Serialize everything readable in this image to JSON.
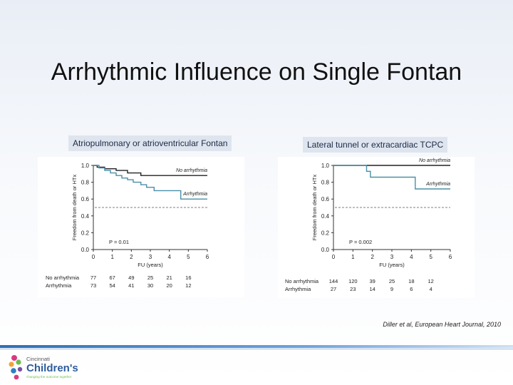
{
  "slide": {
    "title": "Arrhythmic Influence on Single Fontan",
    "citation": "Diller et al, European Heart Journal, 2010"
  },
  "logo": {
    "line1": "Cincinnati",
    "line2": "Children's",
    "tagline": "changing the outcome together",
    "colors": [
      "#d93a7f",
      "#6cbf4a",
      "#2d7fc1",
      "#f2a33a",
      "#7a4fa0"
    ]
  },
  "colors": {
    "no_arrhythmia": "#222222",
    "arrhythmia": "#4a8fa8",
    "reference": "#555555"
  },
  "chart_data": [
    {
      "type": "line",
      "step": true,
      "subtitle": "Atriopulmonary or atrioventricular Fontan",
      "xlabel": "FU (years)",
      "ylabel": "Freedom from death or HTx",
      "xlim": [
        0,
        6
      ],
      "ylim": [
        0.0,
        1.0
      ],
      "xticks": [
        "0",
        "1",
        "2",
        "3",
        "4",
        "5",
        "6"
      ],
      "yticks": [
        "0.0",
        "0.2",
        "0.4",
        "0.6",
        "0.8",
        "1.0"
      ],
      "reference_line": 0.5,
      "annotation": "P = 0.01",
      "series": [
        {
          "name": "No arrhythmia",
          "points": [
            [
              0,
              1.0
            ],
            [
              0.2,
              1.0
            ],
            [
              0.2,
              0.98
            ],
            [
              0.6,
              0.98
            ],
            [
              0.6,
              0.96
            ],
            [
              1.2,
              0.96
            ],
            [
              1.2,
              0.94
            ],
            [
              1.8,
              0.94
            ],
            [
              1.8,
              0.91
            ],
            [
              2.5,
              0.91
            ],
            [
              2.5,
              0.88
            ],
            [
              6,
              0.88
            ]
          ],
          "at_risk": [
            "77",
            "67",
            "49",
            "25",
            "21",
            "16"
          ]
        },
        {
          "name": "Arrhythmia",
          "points": [
            [
              0,
              1.0
            ],
            [
              0.3,
              1.0
            ],
            [
              0.3,
              0.97
            ],
            [
              0.6,
              0.97
            ],
            [
              0.6,
              0.94
            ],
            [
              0.9,
              0.94
            ],
            [
              0.9,
              0.91
            ],
            [
              1.2,
              0.91
            ],
            [
              1.2,
              0.88
            ],
            [
              1.5,
              0.88
            ],
            [
              1.5,
              0.85
            ],
            [
              1.8,
              0.85
            ],
            [
              1.8,
              0.83
            ],
            [
              2.1,
              0.83
            ],
            [
              2.1,
              0.8
            ],
            [
              2.5,
              0.8
            ],
            [
              2.5,
              0.77
            ],
            [
              2.8,
              0.77
            ],
            [
              2.8,
              0.74
            ],
            [
              3.2,
              0.74
            ],
            [
              3.2,
              0.7
            ],
            [
              4.6,
              0.7
            ],
            [
              4.6,
              0.6
            ],
            [
              6,
              0.6
            ]
          ],
          "at_risk": [
            "73",
            "54",
            "41",
            "30",
            "20",
            "12"
          ]
        }
      ]
    },
    {
      "type": "line",
      "step": true,
      "subtitle": "Lateral tunnel or extracardiac TCPC",
      "xlabel": "FU (years)",
      "ylabel": "Freedom from death or HTx",
      "xlim": [
        0,
        6
      ],
      "ylim": [
        0.0,
        1.0
      ],
      "xticks": [
        "0",
        "1",
        "2",
        "3",
        "4",
        "5",
        "6"
      ],
      "yticks": [
        "0.0",
        "0.2",
        "0.4",
        "0.6",
        "0.8",
        "1.0"
      ],
      "reference_line": 0.5,
      "annotation": "P = 0.002",
      "series": [
        {
          "name": "No arrhythmia",
          "points": [
            [
              0,
              1.0
            ],
            [
              6,
              1.0
            ]
          ],
          "at_risk": [
            "144",
            "120",
            "39",
            "25",
            "18",
            "12"
          ]
        },
        {
          "name": "Arrhythmia",
          "points": [
            [
              0,
              1.0
            ],
            [
              1.7,
              1.0
            ],
            [
              1.7,
              0.93
            ],
            [
              1.9,
              0.93
            ],
            [
              1.9,
              0.86
            ],
            [
              4.2,
              0.86
            ],
            [
              4.2,
              0.72
            ],
            [
              6,
              0.72
            ]
          ],
          "at_risk": [
            "27",
            "23",
            "14",
            "9",
            "6",
            "4"
          ]
        }
      ]
    }
  ]
}
